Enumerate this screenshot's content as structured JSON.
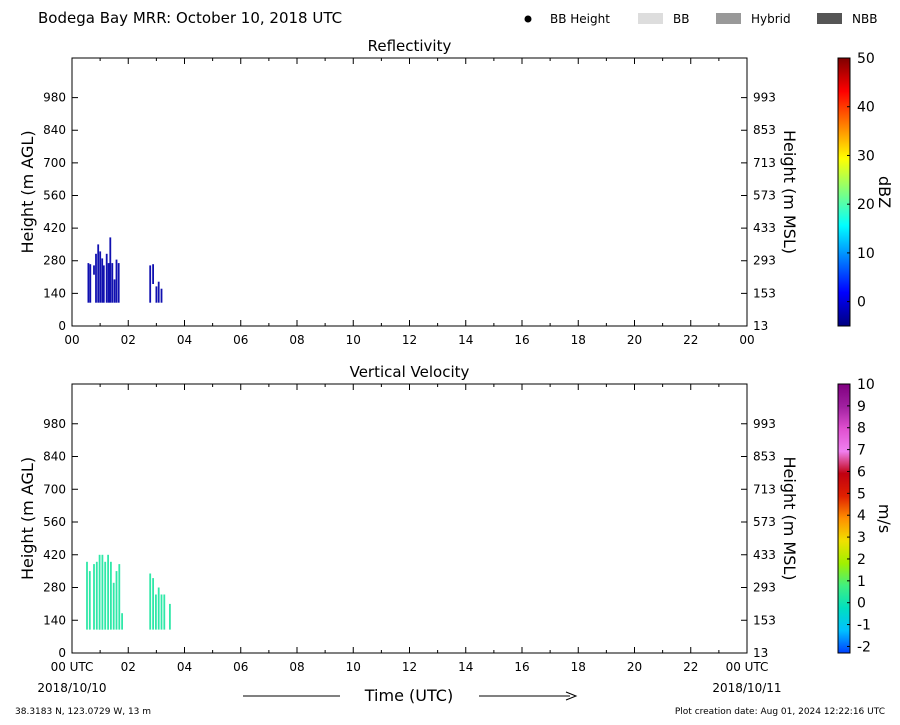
{
  "header": {
    "title": "Bodega Bay MRR:  October 10, 2018 UTC",
    "legend": [
      {
        "label": "BB Height",
        "kind": "dot",
        "color": "#000000"
      },
      {
        "label": "BB",
        "kind": "swatch",
        "color": "#dddddd"
      },
      {
        "label": "Hybrid",
        "kind": "swatch",
        "color": "#999999"
      },
      {
        "label": "NBB",
        "kind": "swatch",
        "color": "#555555"
      }
    ]
  },
  "footer": {
    "location": "38.3183 N, 123.0729 W, 13 m",
    "creation": "Plot creation date: Aug 01, 2024 12:22:16 UTC",
    "xlabel": "Time (UTC)",
    "start_date": "2018/10/10",
    "end_date": "2018/10/11"
  },
  "chart_data": [
    {
      "type": "heatmap",
      "title": "Reflectivity",
      "ylabel_left": "Height (m AGL)",
      "ylabel_right": "Height (m MSL)",
      "x_ticks": [
        "00",
        "02",
        "04",
        "06",
        "08",
        "10",
        "12",
        "14",
        "16",
        "18",
        "20",
        "22",
        "00"
      ],
      "xlim": [
        0,
        24
      ],
      "ylim": [
        0,
        1150
      ],
      "y_ticks_left": [
        0,
        140,
        280,
        420,
        560,
        700,
        840,
        980
      ],
      "y_ticks_right": [
        13,
        153,
        293,
        433,
        573,
        713,
        853,
        993
      ],
      "colorbar": {
        "label": "dBZ",
        "range": [
          -5,
          50
        ],
        "ticks": [
          0,
          10,
          20,
          30,
          40,
          50
        ],
        "colors": [
          "#00007f",
          "#0000ff",
          "#007fff",
          "#00ffff",
          "#7fff7f",
          "#ffff00",
          "#ff7f00",
          "#ff0000",
          "#7f0000"
        ]
      },
      "echo_color": "#1010b0",
      "columns": [
        {
          "t": 0.55,
          "bottom": 100,
          "top": 270
        },
        {
          "t": 0.62,
          "bottom": 100,
          "top": 265
        },
        {
          "t": 0.75,
          "bottom": 220,
          "top": 260
        },
        {
          "t": 0.82,
          "bottom": 100,
          "top": 310
        },
        {
          "t": 0.9,
          "bottom": 100,
          "top": 350
        },
        {
          "t": 0.97,
          "bottom": 100,
          "top": 320
        },
        {
          "t": 1.04,
          "bottom": 100,
          "top": 290
        },
        {
          "t": 1.1,
          "bottom": 100,
          "top": 260
        },
        {
          "t": 1.2,
          "bottom": 100,
          "top": 310
        },
        {
          "t": 1.27,
          "bottom": 100,
          "top": 270
        },
        {
          "t": 1.33,
          "bottom": 100,
          "top": 380
        },
        {
          "t": 1.4,
          "bottom": 100,
          "top": 270
        },
        {
          "t": 1.48,
          "bottom": 100,
          "top": 200
        },
        {
          "t": 1.55,
          "bottom": 100,
          "top": 285
        },
        {
          "t": 1.63,
          "bottom": 100,
          "top": 270
        },
        {
          "t": 2.75,
          "bottom": 100,
          "top": 260
        },
        {
          "t": 2.85,
          "bottom": 180,
          "top": 265
        },
        {
          "t": 2.97,
          "bottom": 100,
          "top": 170
        },
        {
          "t": 3.05,
          "bottom": 100,
          "top": 190
        },
        {
          "t": 3.15,
          "bottom": 100,
          "top": 160
        }
      ]
    },
    {
      "type": "heatmap",
      "title": "Vertical Velocity",
      "ylabel_left": "Height (m AGL)",
      "ylabel_right": "Height (m MSL)",
      "x_ticks": [
        "00 UTC",
        "02",
        "04",
        "06",
        "08",
        "10",
        "12",
        "14",
        "16",
        "18",
        "20",
        "22",
        "00 UTC"
      ],
      "xlim": [
        0,
        24
      ],
      "ylim": [
        0,
        1150
      ],
      "y_ticks_left": [
        0,
        140,
        280,
        420,
        560,
        700,
        840,
        980
      ],
      "y_ticks_right": [
        13,
        153,
        293,
        433,
        573,
        713,
        853,
        993
      ],
      "colorbar": {
        "label": "m/s",
        "range": [
          -2.3,
          10
        ],
        "ticks": [
          -2,
          -1,
          0,
          1,
          2,
          3,
          4,
          5,
          6,
          7,
          8,
          9,
          10
        ],
        "colors": [
          "#0040ff",
          "#00c0ff",
          "#00e0c0",
          "#40f080",
          "#a0f000",
          "#f0e000",
          "#ff9000",
          "#e02000",
          "#c00010",
          "#f080f0",
          "#e050d0",
          "#a020a0",
          "#800080"
        ]
      },
      "echo_color": "#30e8a8",
      "columns": [
        {
          "t": 0.5,
          "bottom": 100,
          "top": 390
        },
        {
          "t": 0.6,
          "bottom": 100,
          "top": 350
        },
        {
          "t": 0.75,
          "bottom": 100,
          "top": 380
        },
        {
          "t": 0.85,
          "bottom": 100,
          "top": 390
        },
        {
          "t": 0.95,
          "bottom": 100,
          "top": 420
        },
        {
          "t": 1.05,
          "bottom": 100,
          "top": 420
        },
        {
          "t": 1.15,
          "bottom": 100,
          "top": 390
        },
        {
          "t": 1.25,
          "bottom": 100,
          "top": 420
        },
        {
          "t": 1.35,
          "bottom": 100,
          "top": 390
        },
        {
          "t": 1.45,
          "bottom": 100,
          "top": 300
        },
        {
          "t": 1.55,
          "bottom": 100,
          "top": 350
        },
        {
          "t": 1.65,
          "bottom": 100,
          "top": 380
        },
        {
          "t": 1.75,
          "bottom": 100,
          "top": 170
        },
        {
          "t": 2.75,
          "bottom": 100,
          "top": 340
        },
        {
          "t": 2.85,
          "bottom": 100,
          "top": 320
        },
        {
          "t": 2.95,
          "bottom": 100,
          "top": 250
        },
        {
          "t": 3.05,
          "bottom": 100,
          "top": 280
        },
        {
          "t": 3.15,
          "bottom": 100,
          "top": 250
        },
        {
          "t": 3.25,
          "bottom": 100,
          "top": 250
        },
        {
          "t": 3.45,
          "bottom": 100,
          "top": 210
        }
      ]
    }
  ]
}
